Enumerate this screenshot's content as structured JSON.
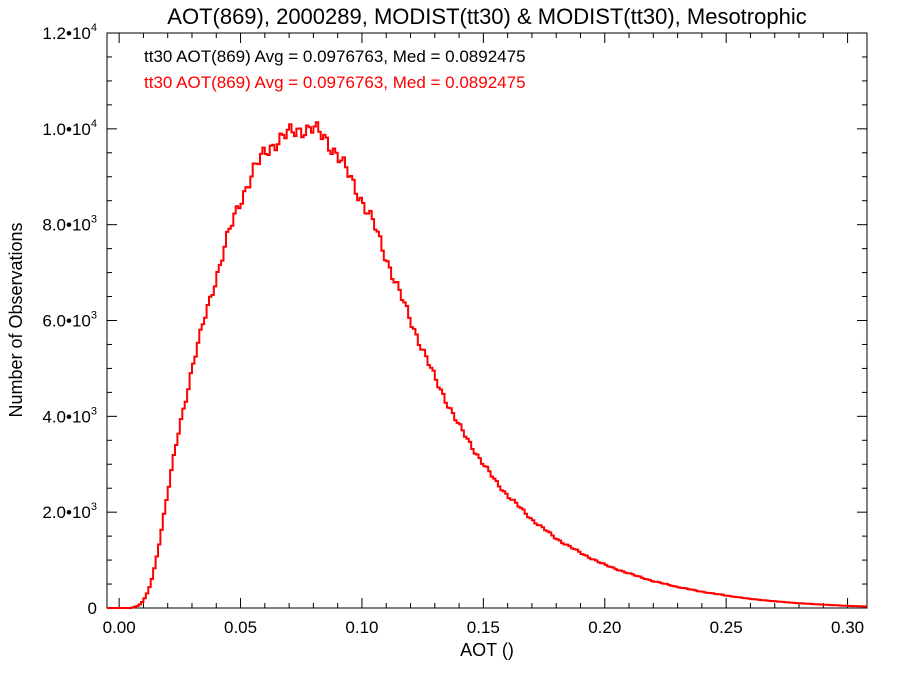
{
  "chart_data": {
    "type": "histogram-step",
    "title": "AOT(869), 2000289, MODIST(tt30) & MODIST(tt30), Mesotrophic",
    "xlabel": "AOT ()",
    "ylabel": "Number of Observations",
    "xlim": [
      -0.005,
      0.308
    ],
    "ylim": [
      0,
      12000
    ],
    "x_ticks": [
      {
        "value": 0.0,
        "label": "0.00"
      },
      {
        "value": 0.05,
        "label": "0.05"
      },
      {
        "value": 0.1,
        "label": "0.10"
      },
      {
        "value": 0.15,
        "label": "0.15"
      },
      {
        "value": 0.2,
        "label": "0.20"
      },
      {
        "value": 0.25,
        "label": "0.25"
      },
      {
        "value": 0.3,
        "label": "0.30"
      }
    ],
    "y_ticks": [
      {
        "value": 0,
        "label": "0",
        "exp": ""
      },
      {
        "value": 2000,
        "label": "2.0•10",
        "exp": "3"
      },
      {
        "value": 4000,
        "label": "4.0•10",
        "exp": "3"
      },
      {
        "value": 6000,
        "label": "6.0•10",
        "exp": "3"
      },
      {
        "value": 8000,
        "label": "8.0•10",
        "exp": "3"
      },
      {
        "value": 10000,
        "label": "1.0•10",
        "exp": "4"
      },
      {
        "value": 12000,
        "label": "1.2•10",
        "exp": "4"
      }
    ],
    "legend": [
      {
        "text": "tt30 AOT(869) Avg = 0.0976763, Med = 0.0892475",
        "color": "#000000"
      },
      {
        "text": "tt30 AOT(869) Avg = 0.0976763, Med = 0.0892475",
        "color": "#ff0000"
      }
    ],
    "series": [
      {
        "color": "#ff0000",
        "bin_width": 0.001,
        "points": [
          [
            -0.005,
            0
          ],
          [
            0.005,
            0
          ],
          [
            0.008,
            50
          ],
          [
            0.01,
            150
          ],
          [
            0.012,
            350
          ],
          [
            0.014,
            700
          ],
          [
            0.016,
            1200
          ],
          [
            0.018,
            1800
          ],
          [
            0.02,
            2400
          ],
          [
            0.022,
            3000
          ],
          [
            0.025,
            3800
          ],
          [
            0.028,
            4500
          ],
          [
            0.03,
            5000
          ],
          [
            0.035,
            6000
          ],
          [
            0.04,
            6900
          ],
          [
            0.045,
            7800
          ],
          [
            0.05,
            8500
          ],
          [
            0.055,
            9100
          ],
          [
            0.06,
            9500
          ],
          [
            0.065,
            9750
          ],
          [
            0.07,
            9900
          ],
          [
            0.075,
            10000
          ],
          [
            0.08,
            10000
          ],
          [
            0.085,
            9800
          ],
          [
            0.09,
            9450
          ],
          [
            0.095,
            9000
          ],
          [
            0.1,
            8500
          ],
          [
            0.105,
            8000
          ],
          [
            0.11,
            7300
          ],
          [
            0.115,
            6650
          ],
          [
            0.12,
            6000
          ],
          [
            0.125,
            5400
          ],
          [
            0.13,
            4800
          ],
          [
            0.135,
            4300
          ],
          [
            0.14,
            3800
          ],
          [
            0.145,
            3400
          ],
          [
            0.15,
            3000
          ],
          [
            0.155,
            2650
          ],
          [
            0.16,
            2350
          ],
          [
            0.165,
            2100
          ],
          [
            0.17,
            1850
          ],
          [
            0.175,
            1650
          ],
          [
            0.18,
            1450
          ],
          [
            0.19,
            1150
          ],
          [
            0.2,
            900
          ],
          [
            0.21,
            720
          ],
          [
            0.22,
            560
          ],
          [
            0.23,
            440
          ],
          [
            0.24,
            340
          ],
          [
            0.25,
            260
          ],
          [
            0.26,
            190
          ],
          [
            0.27,
            140
          ],
          [
            0.28,
            100
          ],
          [
            0.29,
            70
          ],
          [
            0.3,
            45
          ],
          [
            0.308,
            30
          ]
        ]
      }
    ],
    "grid": false
  }
}
